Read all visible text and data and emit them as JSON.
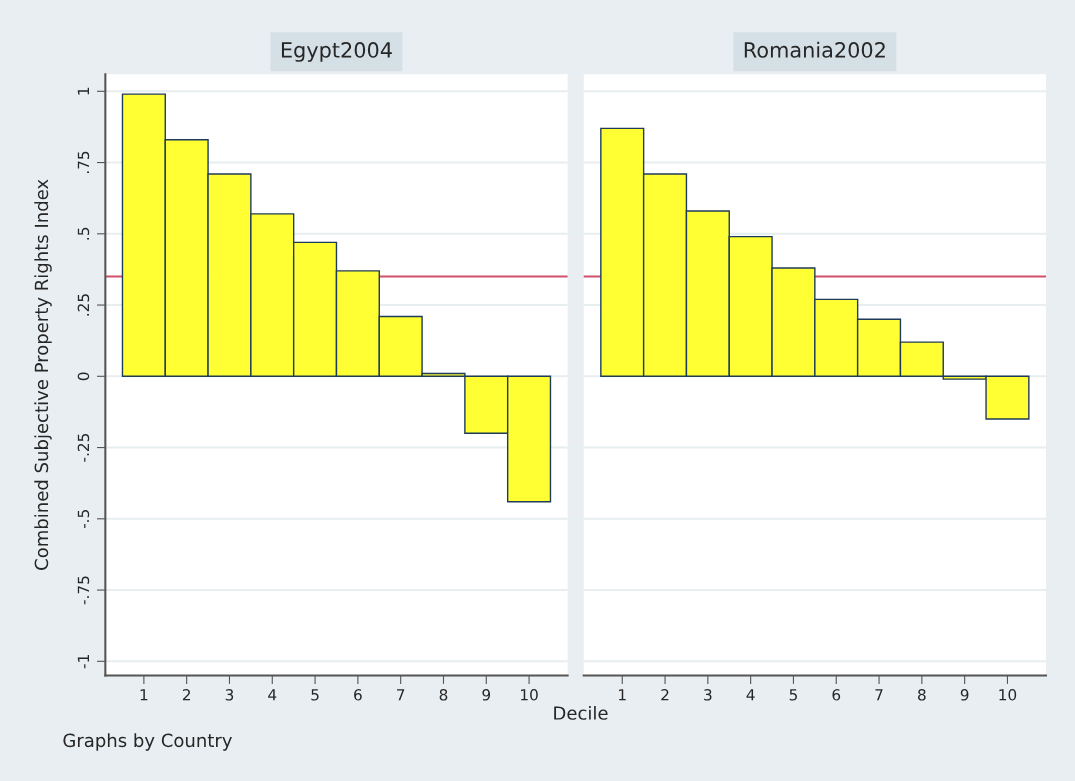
{
  "chart_data": [
    {
      "type": "bar",
      "title": "Egypt2004",
      "ylabel": "Combined Subjective Property Rights Index",
      "xlabel": "Decile",
      "annotations": [
        "Graphs by Country"
      ],
      "categories": [
        "1",
        "2",
        "3",
        "4",
        "5",
        "6",
        "7",
        "8",
        "9",
        "10"
      ],
      "values": [
        0.99,
        0.83,
        0.71,
        0.57,
        0.47,
        0.37,
        0.21,
        0.01,
        -0.2,
        -0.44
      ],
      "color": "#ffff33",
      "ylim": [
        -1.05,
        1.06
      ],
      "yticks": [
        {
          "value": -1,
          "label": "-1"
        },
        {
          "value": -0.75,
          "label": "-.75"
        },
        {
          "value": -0.5,
          "label": "-.5"
        },
        {
          "value": -0.25,
          "label": "-.25"
        },
        0,
        {
          "value": 0.25,
          "label": ".25"
        },
        {
          "value": 0.5,
          "label": ".5"
        },
        {
          "value": 0.75,
          "label": ".75"
        },
        1
      ],
      "grid": "y",
      "ref_lines": [
        {
          "axis": "y",
          "value": 0.35,
          "color": "#d0506a"
        }
      ]
    },
    {
      "type": "bar",
      "title": "Romania2002",
      "categories": [
        "1",
        "2",
        "3",
        "4",
        "5",
        "6",
        "7",
        "8",
        "9",
        "10"
      ],
      "values": [
        0.87,
        0.71,
        0.58,
        0.49,
        0.38,
        0.27,
        0.2,
        0.12,
        -0.01,
        -0.15
      ],
      "color": "#ffff33",
      "ylim": [
        -1.05,
        1.06
      ],
      "yticks": [
        {
          "value": -1,
          "label": null
        },
        {
          "value": -0.75,
          "label": null
        },
        {
          "value": -0.5,
          "label": null
        },
        {
          "value": -0.25,
          "label": null
        },
        {
          "value": 0,
          "label": null
        },
        {
          "value": 0.25,
          "label": null
        },
        {
          "value": 0.5,
          "label": null
        },
        {
          "value": 0.75,
          "label": null
        },
        {
          "value": 1,
          "label": null
        }
      ],
      "tick_labels": "x",
      "grid": "y",
      "ref_lines": [
        {
          "axis": "y",
          "value": 0.35,
          "color": "#d0506a"
        }
      ]
    }
  ]
}
